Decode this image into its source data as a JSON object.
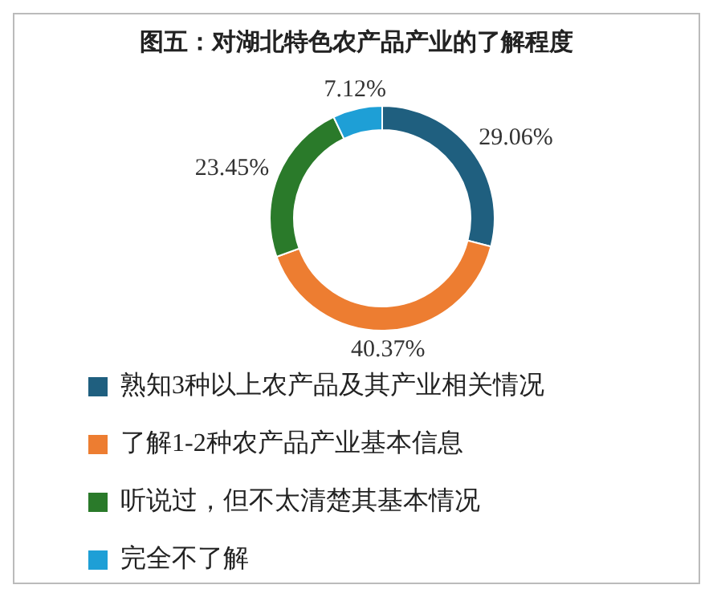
{
  "chart_data": {
    "type": "donut",
    "title": "图五：对湖北特色农产品产业的了解程度",
    "categories": [
      "熟知3种以上农产品及其产业相关情况",
      "了解1-2种农产品产业基本信息",
      "听说过，但不太清楚其基本情况",
      "完全不了解"
    ],
    "values": [
      29.06,
      40.37,
      23.45,
      7.12
    ],
    "colors": [
      "#1f5f7f",
      "#ed7d31",
      "#2a7a2a",
      "#1e9fd6"
    ],
    "value_labels": [
      "29.06%",
      "40.37%",
      "23.45%",
      "7.12%"
    ],
    "legend": "bottom"
  }
}
